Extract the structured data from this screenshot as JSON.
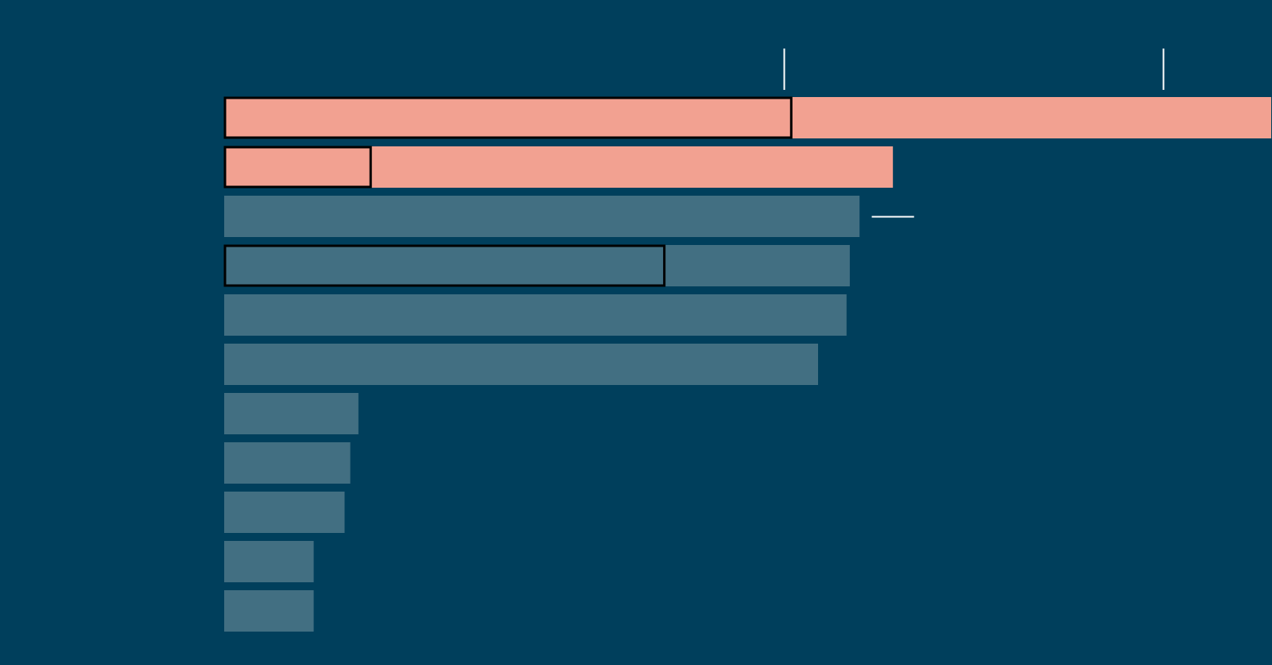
{
  "colors": {
    "background": "#003f5c",
    "highlight_bar": "#f2a191",
    "default_bar": "#426f82",
    "outline": "#000000",
    "marker": "#ffffff"
  },
  "chart_data": {
    "type": "bar",
    "orientation": "horizontal",
    "title": "",
    "xlabel": "",
    "ylabel": "",
    "grid": false,
    "xlim": [
      0,
      1287
    ],
    "bars": [
      {
        "value": 1287,
        "inner_value": 698,
        "highlighted": true
      },
      {
        "value": 822,
        "inner_value": 181,
        "highlighted": true
      },
      {
        "value": 781,
        "inner_value": null,
        "highlighted": false
      },
      {
        "value": 769,
        "inner_value": 542,
        "highlighted": false
      },
      {
        "value": 765,
        "inner_value": null,
        "highlighted": false
      },
      {
        "value": 730,
        "inner_value": null,
        "highlighted": false
      },
      {
        "value": 165,
        "inner_value": null,
        "highlighted": false
      },
      {
        "value": 155,
        "inner_value": null,
        "highlighted": false
      },
      {
        "value": 148,
        "inner_value": null,
        "highlighted": false
      },
      {
        "value": 110,
        "inner_value": null,
        "highlighted": false
      },
      {
        "value": 110,
        "inner_value": null,
        "highlighted": false
      }
    ],
    "markers": [
      {
        "value": 688,
        "orientation": "vertical"
      },
      {
        "value": 1154,
        "orientation": "vertical"
      }
    ],
    "horizontal_marker": {
      "bar_index": 2,
      "from_value": 796,
      "to_value": 848
    }
  }
}
